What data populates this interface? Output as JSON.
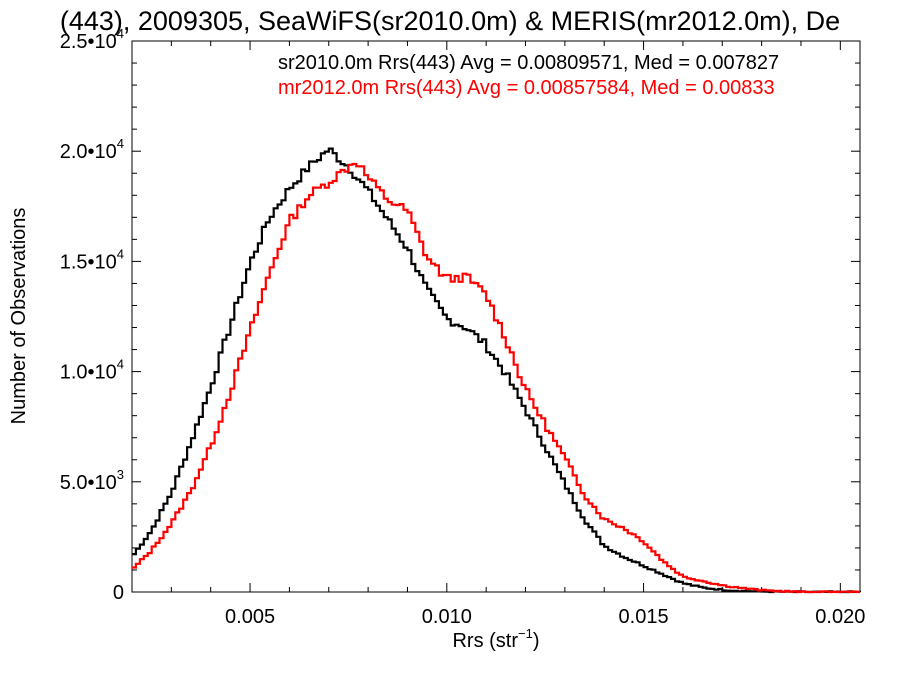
{
  "chart_data": {
    "type": "line",
    "title": "(443), 2009305, SeaWiFS(sr2010.0m) & MERIS(mr2012.0m), De",
    "xlabel": "Rrs (str",
    "xlabel_sup": "−1",
    "xlabel_end": ")",
    "ylabel": "Number of Observations",
    "xlim": [
      0.002,
      0.0205
    ],
    "ylim": [
      0,
      25000
    ],
    "xticks": [
      {
        "value": 0.005,
        "label": "0.005"
      },
      {
        "value": 0.01,
        "label": "0.010"
      },
      {
        "value": 0.015,
        "label": "0.015"
      },
      {
        "value": 0.02,
        "label": "0.020"
      }
    ],
    "yticks": [
      {
        "value": 0,
        "label": "0",
        "sup": ""
      },
      {
        "value": 5000,
        "label": "5.0•10",
        "sup": "3"
      },
      {
        "value": 10000,
        "label": "1.0•10",
        "sup": "4"
      },
      {
        "value": 15000,
        "label": "1.5•10",
        "sup": "4"
      },
      {
        "value": 20000,
        "label": "2.0•10",
        "sup": "4"
      },
      {
        "value": 25000,
        "label": "2.5•10",
        "sup": "4"
      }
    ],
    "grid": false,
    "legend_position": "top-right",
    "series": [
      {
        "name": "sr2010.0m Rrs(443) Avg = 0.00809571, Med = 0.007827",
        "color": "#000000",
        "x": [
          0.002,
          0.0025,
          0.003,
          0.0035,
          0.004,
          0.0045,
          0.005,
          0.0055,
          0.006,
          0.0065,
          0.007,
          0.0073,
          0.0075,
          0.008,
          0.0085,
          0.009,
          0.0095,
          0.01,
          0.0105,
          0.011,
          0.0115,
          0.012,
          0.0125,
          0.013,
          0.0135,
          0.014,
          0.0145,
          0.015,
          0.0155,
          0.016,
          0.0165,
          0.017,
          0.0175,
          0.018,
          0.019,
          0.0205
        ],
        "y": [
          1600,
          2800,
          4500,
          6800,
          9300,
          12100,
          14900,
          17000,
          18300,
          19300,
          20100,
          19600,
          19300,
          18200,
          16900,
          15600,
          13700,
          12400,
          12000,
          11200,
          9900,
          8300,
          6600,
          4900,
          3300,
          2100,
          1600,
          1200,
          800,
          400,
          200,
          100,
          50,
          20,
          0,
          0
        ]
      },
      {
        "name": "mr2012.0m Rrs(443) Avg = 0.00857584, Med = 0.00833",
        "color": "#ff0000",
        "x": [
          0.002,
          0.0025,
          0.003,
          0.0035,
          0.004,
          0.0045,
          0.005,
          0.0055,
          0.006,
          0.0065,
          0.007,
          0.0075,
          0.0077,
          0.008,
          0.0085,
          0.009,
          0.0095,
          0.01,
          0.0105,
          0.011,
          0.0115,
          0.012,
          0.0125,
          0.013,
          0.0135,
          0.014,
          0.0145,
          0.015,
          0.0155,
          0.016,
          0.0165,
          0.017,
          0.0175,
          0.018,
          0.019,
          0.0205
        ],
        "y": [
          1000,
          1900,
          3100,
          4600,
          6600,
          9100,
          11800,
          14500,
          16800,
          18000,
          18600,
          19300,
          19600,
          18800,
          17800,
          17300,
          15200,
          14200,
          14300,
          13500,
          11500,
          9200,
          7600,
          6100,
          4400,
          3300,
          2900,
          2300,
          1400,
          700,
          500,
          300,
          180,
          80,
          0,
          0
        ]
      }
    ]
  }
}
